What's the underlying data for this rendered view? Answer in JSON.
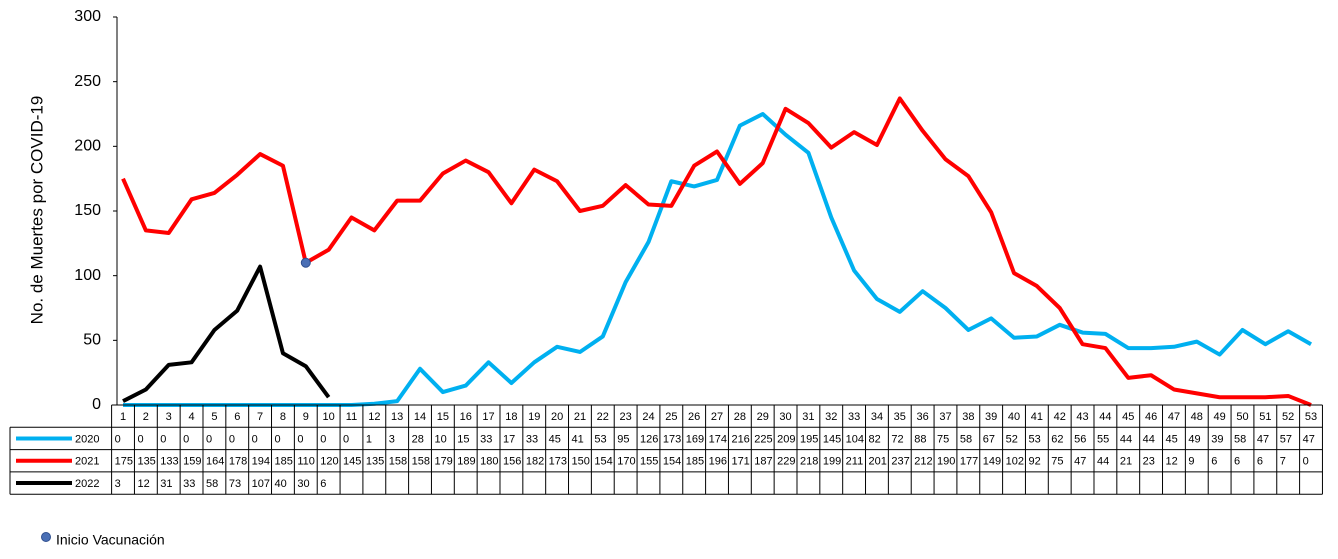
{
  "chart_data": {
    "type": "line",
    "ylabel": "No. de Muertes por COVID-19",
    "categories": [
      1,
      2,
      3,
      4,
      5,
      6,
      7,
      8,
      9,
      10,
      11,
      12,
      13,
      14,
      15,
      16,
      17,
      18,
      19,
      20,
      21,
      22,
      23,
      24,
      25,
      26,
      27,
      28,
      29,
      30,
      31,
      32,
      33,
      34,
      35,
      36,
      37,
      38,
      39,
      40,
      41,
      42,
      43,
      44,
      45,
      46,
      47,
      48,
      49,
      50,
      51,
      52,
      53
    ],
    "series": [
      {
        "name": "2020",
        "color": "#00b0f0",
        "values": [
          0,
          0,
          0,
          0,
          0,
          0,
          0,
          0,
          0,
          0,
          0,
          1,
          3,
          28,
          10,
          15,
          33,
          17,
          33,
          45,
          41,
          53,
          95,
          126,
          173,
          169,
          174,
          216,
          225,
          209,
          195,
          145,
          104,
          82,
          72,
          88,
          75,
          58,
          67,
          52,
          53,
          62,
          56,
          55,
          44,
          44,
          45,
          49,
          39,
          58,
          47,
          57,
          47
        ]
      },
      {
        "name": "2021",
        "color": "#ff0000",
        "values": [
          175,
          135,
          133,
          159,
          164,
          178,
          194,
          185,
          110,
          120,
          145,
          135,
          158,
          158,
          179,
          189,
          180,
          156,
          182,
          173,
          150,
          154,
          170,
          155,
          154,
          185,
          196,
          171,
          187,
          229,
          218,
          199,
          211,
          201,
          237,
          212,
          190,
          177,
          149,
          102,
          92,
          75,
          47,
          44,
          21,
          23,
          12,
          9,
          6,
          6,
          6,
          7,
          0
        ]
      },
      {
        "name": "2022",
        "color": "#000000",
        "values": [
          3,
          12,
          31,
          33,
          58,
          73,
          107,
          40,
          30,
          6,
          null,
          null,
          null,
          null,
          null,
          null,
          null,
          null,
          null,
          null,
          null,
          null,
          null,
          null,
          null,
          null,
          null,
          null,
          null,
          null,
          null,
          null,
          null,
          null,
          null,
          null,
          null,
          null,
          null,
          null,
          null,
          null,
          null,
          null,
          null,
          null,
          null,
          null,
          null,
          null,
          null,
          null,
          null
        ]
      }
    ],
    "ylim": [
      0,
      300
    ],
    "yticks": [
      0,
      50,
      100,
      150,
      200,
      250,
      300
    ],
    "grid": false,
    "marker": {
      "label": "Inicio Vacunación",
      "series": 1,
      "index": 8,
      "color": "#4a6fb5"
    }
  }
}
